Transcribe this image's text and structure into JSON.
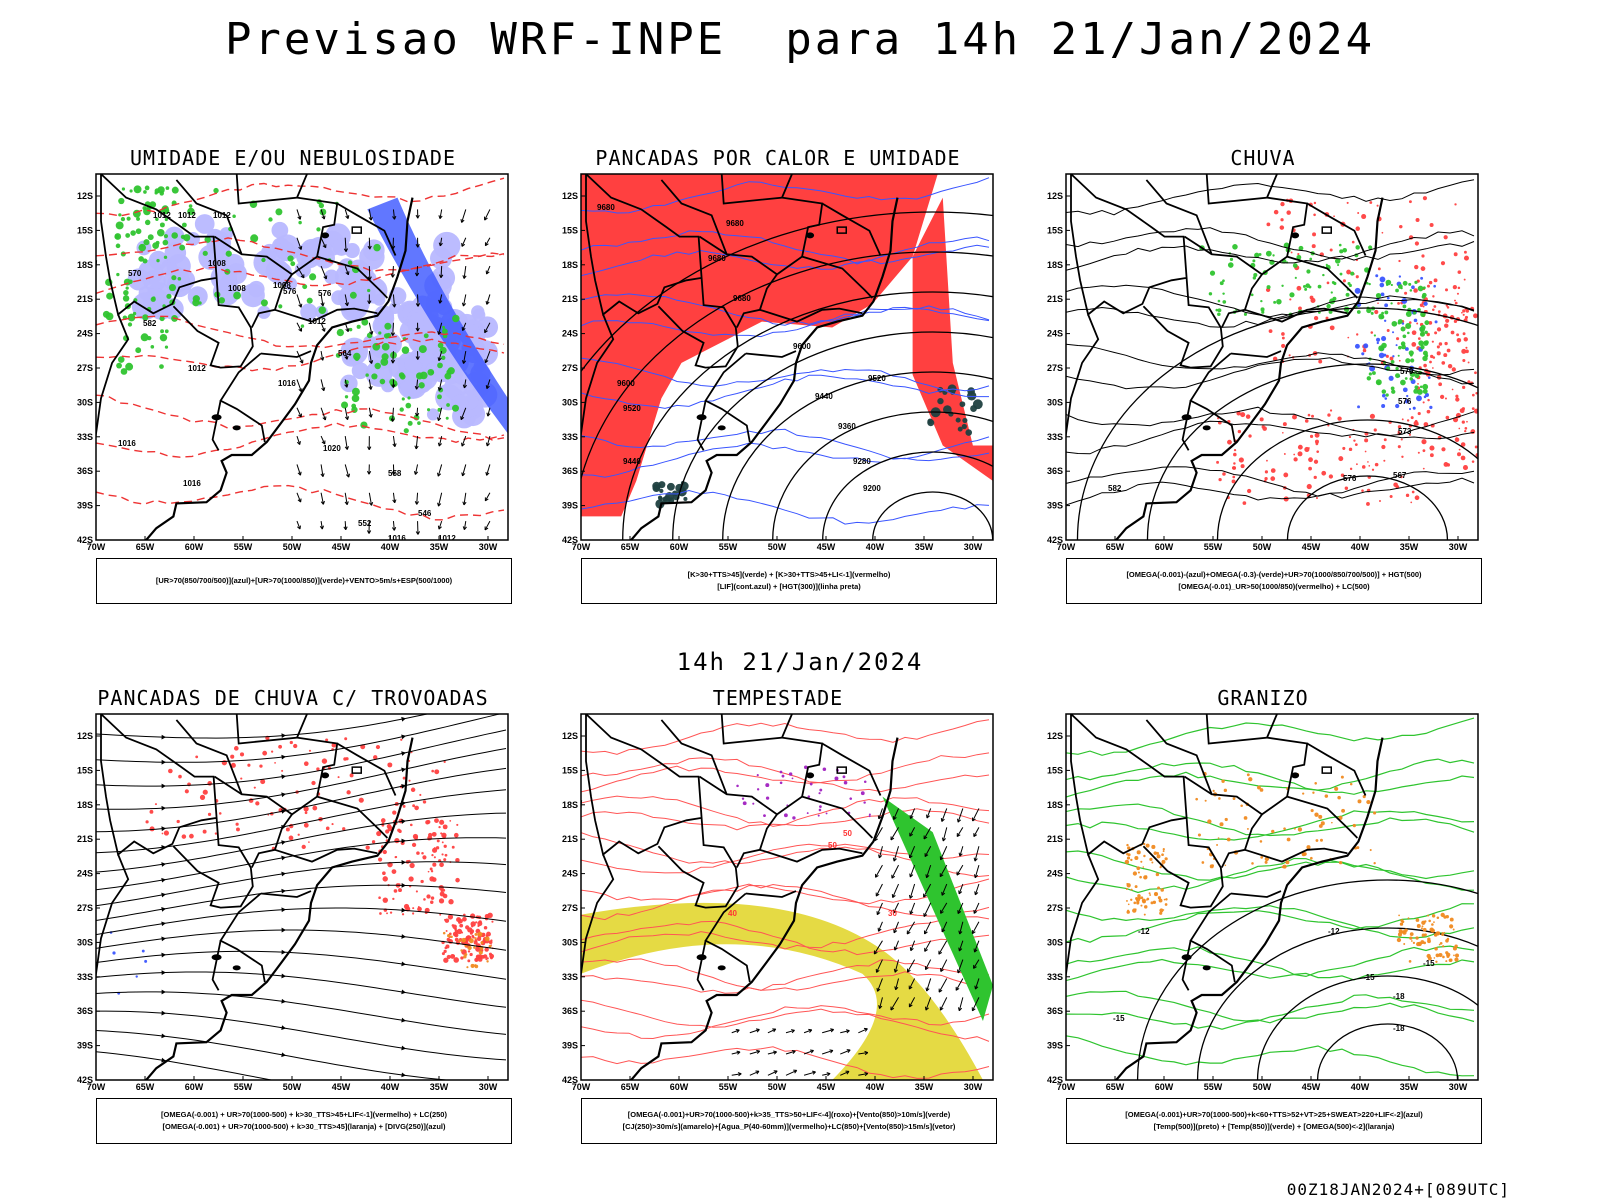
{
  "title": "Previsao WRF-INPE  para 14h 21/Jan/2024",
  "middle_title": "14h 21/Jan/2024",
  "footer": "00Z18JAN2024+[089UTC]",
  "axes": {
    "lat_labels": [
      "12S",
      "15S",
      "18S",
      "21S",
      "24S",
      "27S",
      "30S",
      "33S",
      "36S",
      "39S",
      "42S"
    ],
    "lon_labels": [
      "70W",
      "65W",
      "60W",
      "55W",
      "50W",
      "45W",
      "40W",
      "35W",
      "30W"
    ]
  },
  "colors": {
    "red_field": "#ff4040",
    "green_field": "#2fc42f",
    "blue_field": "#3a55ff",
    "lavender_field": "#b8b8ff",
    "yellow_field": "#e2d630",
    "orange_field": "#f08a20",
    "dark_field": "#1f4040"
  },
  "panels": [
    {
      "id": "umidade",
      "title": "UMIDADE E/OU NEBULOSIDADE",
      "legend_lines": [
        "[UR>70(850/700/500)](azul)+[UR>70(1000/850)](verde)+VENTO>5m/s+ESP(500/1000)"
      ],
      "contour_labels": [
        "1012",
        "1012",
        "1012",
        "1008",
        "1008",
        "1008",
        "1012",
        "1012",
        "1016",
        "1016",
        "1016",
        "1020",
        "1016",
        "1012",
        "576",
        "576",
        "570",
        "564",
        "558",
        "552",
        "546",
        "582"
      ]
    },
    {
      "id": "pancadas_calor",
      "title": "PANCADAS POR CALOR E UMIDADE",
      "legend_lines": [
        "[K>30+TTS>45](verde) + [K>30+TTS>45+LI<-1](vermelho)",
        "[LIF](cont.azul) + [HGT(300)](linha preta)"
      ],
      "contour_labels": [
        "9680",
        "9680",
        "9680",
        "9680",
        "9600",
        "9520",
        "9440",
        "9360",
        "9280",
        "9200",
        "9600",
        "9520",
        "9440"
      ]
    },
    {
      "id": "chuva",
      "title": "CHUVA",
      "legend_lines": [
        "[OMEGA(-0.001)-(azul)+OMEGA(-0.3)-(verde)+UR>70(1000/850/700/500)] + HGT(500)",
        "[OMEGA(-0.01)_UR>50(1000/850)(vermelho) + LC(500)"
      ],
      "contour_labels": [
        "579",
        "576",
        "573",
        "567",
        "576",
        "582"
      ]
    },
    {
      "id": "pancadas_trovoadas",
      "title": "PANCADAS DE CHUVA C/ TROVOADAS",
      "legend_lines": [
        "[OMEGA(-0.001) + UR>70(1000-500) + k>30_TTS>45+LIF<-1](vermelho) + LC(250)",
        "[OMEGA(-0.001) + UR>70(1000-500) + k>30_TTS>45](laranja) + [DIVG(250)](azul)"
      ],
      "contour_labels": []
    },
    {
      "id": "tempestade",
      "title": "TEMPESTADE",
      "legend_lines": [
        "[OMEGA(-0.001)+UR>70(1000-500)+k>35_TTS>50+LIF<-4](roxo)+[Vento(850)>10m/s](verde)",
        "[CJ(250)>30m/s](amarelo)+[Agua_P(40-60mm)](vermelho)+LC(850)+[Vento(850)>15m/s](vetor)"
      ],
      "contour_labels": [
        "50",
        "50",
        "40",
        "30"
      ]
    },
    {
      "id": "granizo",
      "title": "GRANIZO",
      "legend_lines": [
        "[OMEGA(-0.001)+UR>70(1000-500)+k<60+TTS>52+VT>25+SWEAT>220+LIF<-2](azul)",
        "[Temp(500)](preto) + [Temp(850)](verde) + [OMEGA(500)<-2](laranja)"
      ],
      "contour_labels": [
        "-12",
        "-12",
        "-15",
        "-15",
        "-18",
        "-15",
        "-18"
      ]
    }
  ]
}
